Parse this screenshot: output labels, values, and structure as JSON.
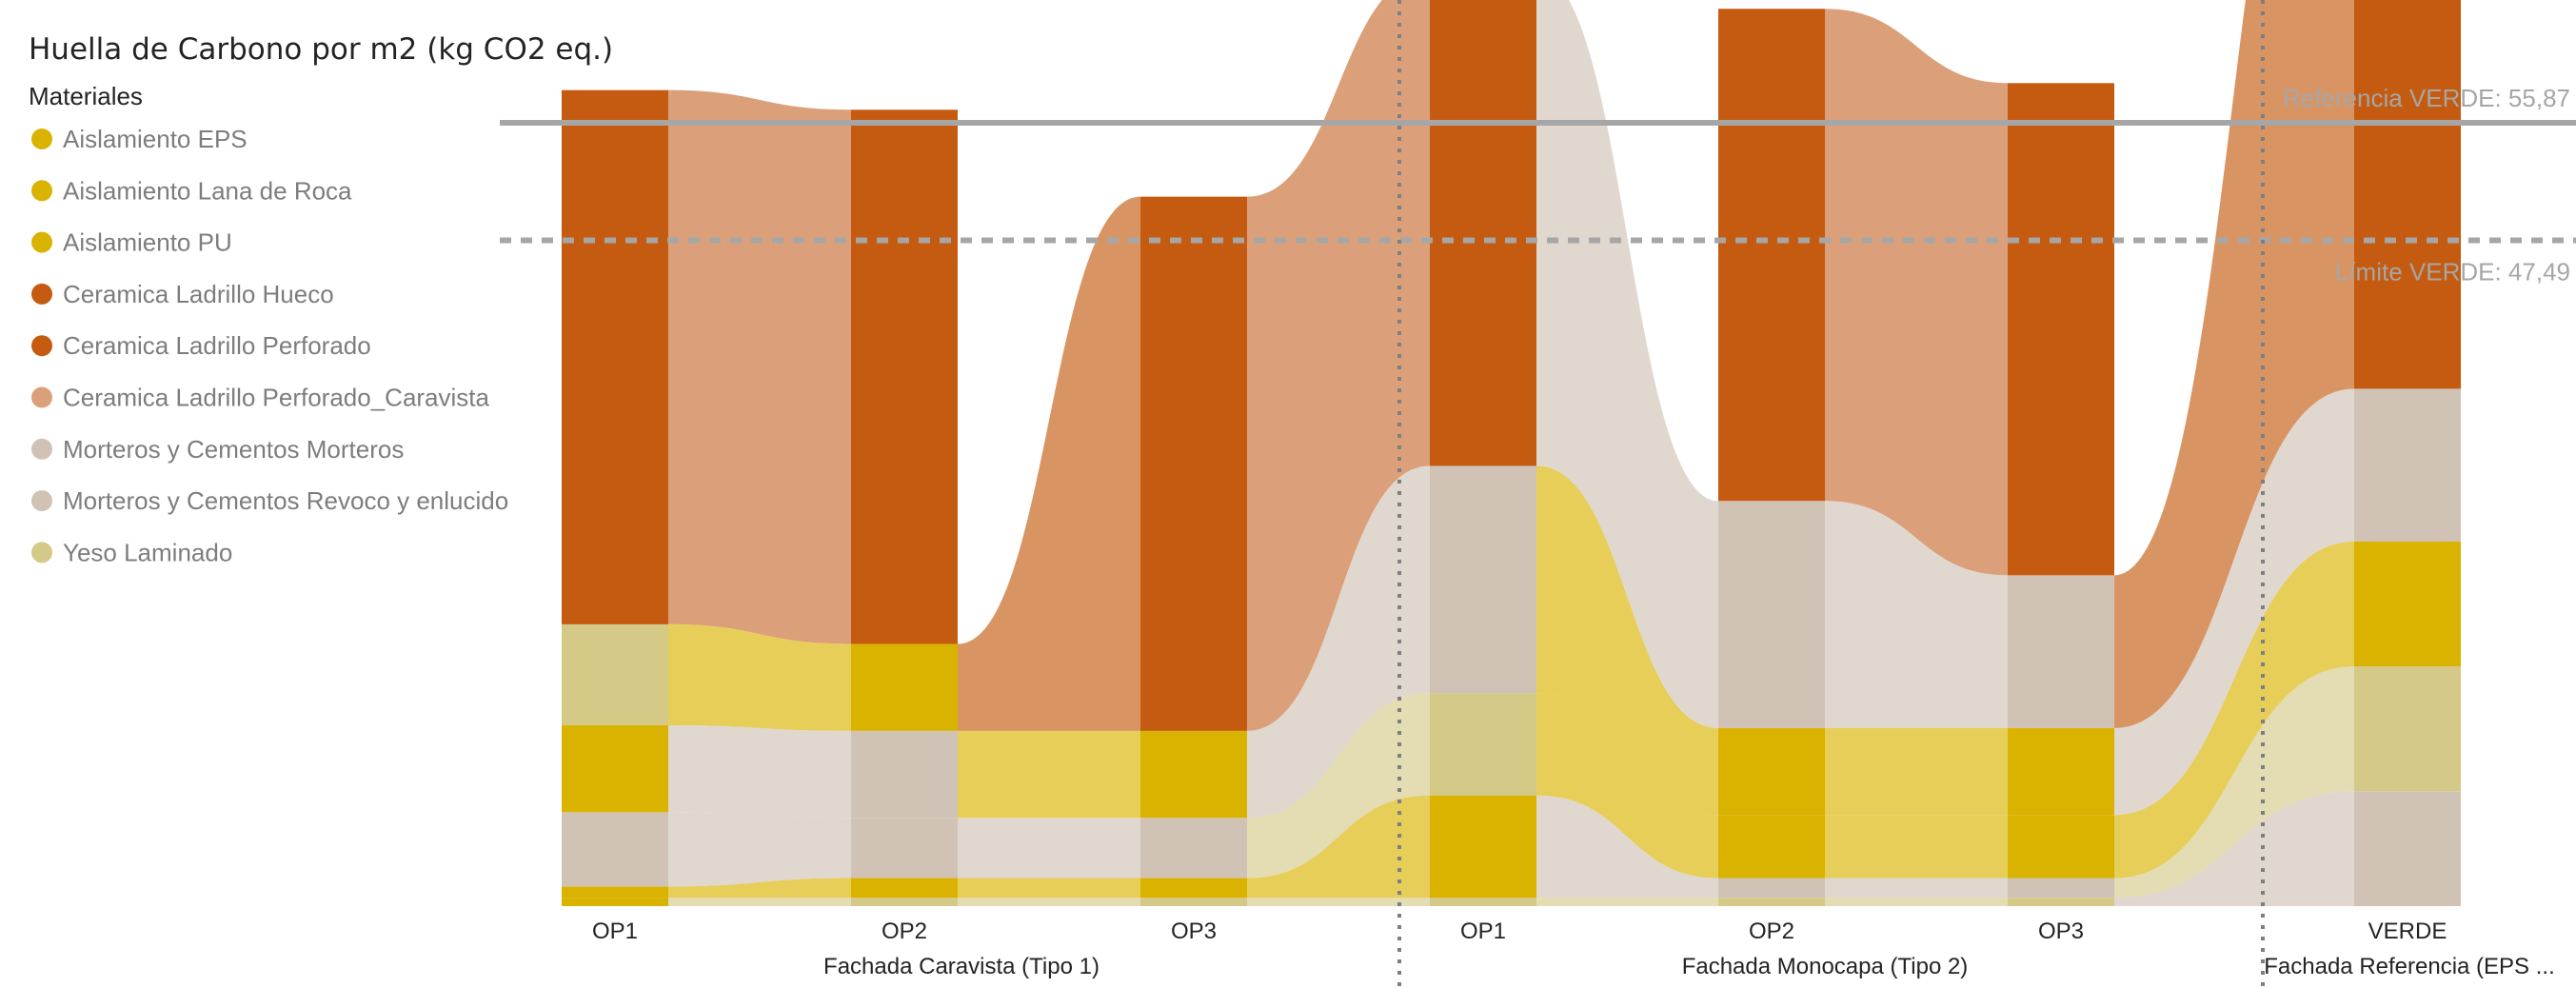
{
  "chart_data": {
    "type": "ribbon",
    "title": "Huella de Carbono por m2 (kg CO2 eq.)",
    "ylabel": "",
    "xlabel": "",
    "ylim": [
      0,
      60
    ],
    "legend": {
      "title": "Materiales",
      "position": "left",
      "items": [
        {
          "name": "Aislamiento EPS",
          "color": "#D9B300"
        },
        {
          "name": "Aislamiento Lana de Roca",
          "color": "#D9B300"
        },
        {
          "name": "Aislamiento PU",
          "color": "#D9B300"
        },
        {
          "name": "Ceramica Ladrillo Hueco",
          "color": "#C55A11"
        },
        {
          "name": "Ceramica Ladrillo Perforado",
          "color": "#C55A11"
        },
        {
          "name": "Ceramica Ladrillo Perforado_Caravista",
          "color": "#DBA07A"
        },
        {
          "name": "Morteros y Cementos Morteros",
          "color": "#D0C3B5"
        },
        {
          "name": "Morteros y Cementos Revoco y enlucido",
          "color": "#D0C3B5"
        },
        {
          "name": "Yeso Laminado",
          "color": "#D5C988"
        }
      ]
    },
    "groups": [
      {
        "label": "Fachada Caravista (Tipo 1)",
        "columns": [
          "OP1",
          "OP2",
          "OP3"
        ]
      },
      {
        "label": "Fachada Monocapa (Tipo 2)",
        "columns": [
          "OP1",
          "OP2",
          "OP3"
        ]
      },
      {
        "label": "Fachada Referencia (EPS ...",
        "columns": [
          "VERDE"
        ]
      }
    ],
    "columns": [
      {
        "label": "OP1",
        "segments": [
          {
            "color": "#D9B300",
            "value": 0.6
          },
          {
            "color": "#D9B300",
            "value": 0.8
          },
          {
            "color": "#D0C3B5",
            "value": 5.3
          },
          {
            "color": "#D9B300",
            "value": 6.2
          },
          {
            "color": "#D5C988",
            "value": 7.2
          },
          {
            "color": "#C55A11",
            "value": 38.1
          }
        ]
      },
      {
        "label": "OP2",
        "segments": [
          {
            "color": "#D5C988",
            "value": 0.6
          },
          {
            "color": "#D9B300",
            "value": 1.4
          },
          {
            "color": "#D0C3B5",
            "value": 4.3
          },
          {
            "color": "#D0C3B5",
            "value": 6.2
          },
          {
            "color": "#D9B300",
            "value": 6.2
          },
          {
            "color": "#C55A11",
            "value": 38.1
          }
        ]
      },
      {
        "label": "OP3",
        "segments": [
          {
            "color": "#D5C988",
            "value": 0.6
          },
          {
            "color": "#D9B300",
            "value": 1.4
          },
          {
            "color": "#D0C3B5",
            "value": 4.3
          },
          {
            "color": "#D9B300",
            "value": 6.2
          },
          {
            "color": "#C55A11",
            "value": 38.1
          }
        ]
      },
      {
        "label": "OP1",
        "segments": [
          {
            "color": "#D5C988",
            "value": 0.6
          },
          {
            "color": "#D9B300",
            "value": 7.3
          },
          {
            "color": "#D5C988",
            "value": 7.3
          },
          {
            "color": "#D0C3B5",
            "value": 16.2
          },
          {
            "color": "#C55A11",
            "value": 35.1
          }
        ]
      },
      {
        "label": "OP2",
        "segments": [
          {
            "color": "#D5C988",
            "value": 0.6
          },
          {
            "color": "#D0C3B5",
            "value": 1.4
          },
          {
            "color": "#D9B300",
            "value": 4.5
          },
          {
            "color": "#D9B300",
            "value": 6.2
          },
          {
            "color": "#D0C3B5",
            "value": 16.2
          },
          {
            "color": "#C55A11",
            "value": 35.1
          }
        ]
      },
      {
        "label": "OP3",
        "segments": [
          {
            "color": "#D5C988",
            "value": 0.6
          },
          {
            "color": "#D0C3B5",
            "value": 1.4
          },
          {
            "color": "#D9B300",
            "value": 4.5
          },
          {
            "color": "#D9B300",
            "value": 6.2
          },
          {
            "color": "#D0C3B5",
            "value": 10.9
          },
          {
            "color": "#C55A11",
            "value": 35.1
          }
        ]
      },
      {
        "label": "VERDE",
        "segments": [
          {
            "color": "#D0C3B5",
            "value": 8.2
          },
          {
            "color": "#D5C988",
            "value": 8.9
          },
          {
            "color": "#D9B300",
            "value": 8.9
          },
          {
            "color": "#D0C3B5",
            "value": 10.9
          },
          {
            "color": "#C55A11",
            "value": 55.9
          }
        ]
      }
    ],
    "reference_lines": [
      {
        "label": "Referencia VERDE: 55,87",
        "value": 55.87,
        "style": "solid"
      },
      {
        "label": "Límite VERDE: 47,49",
        "value": 47.49,
        "style": "dashed"
      }
    ]
  }
}
